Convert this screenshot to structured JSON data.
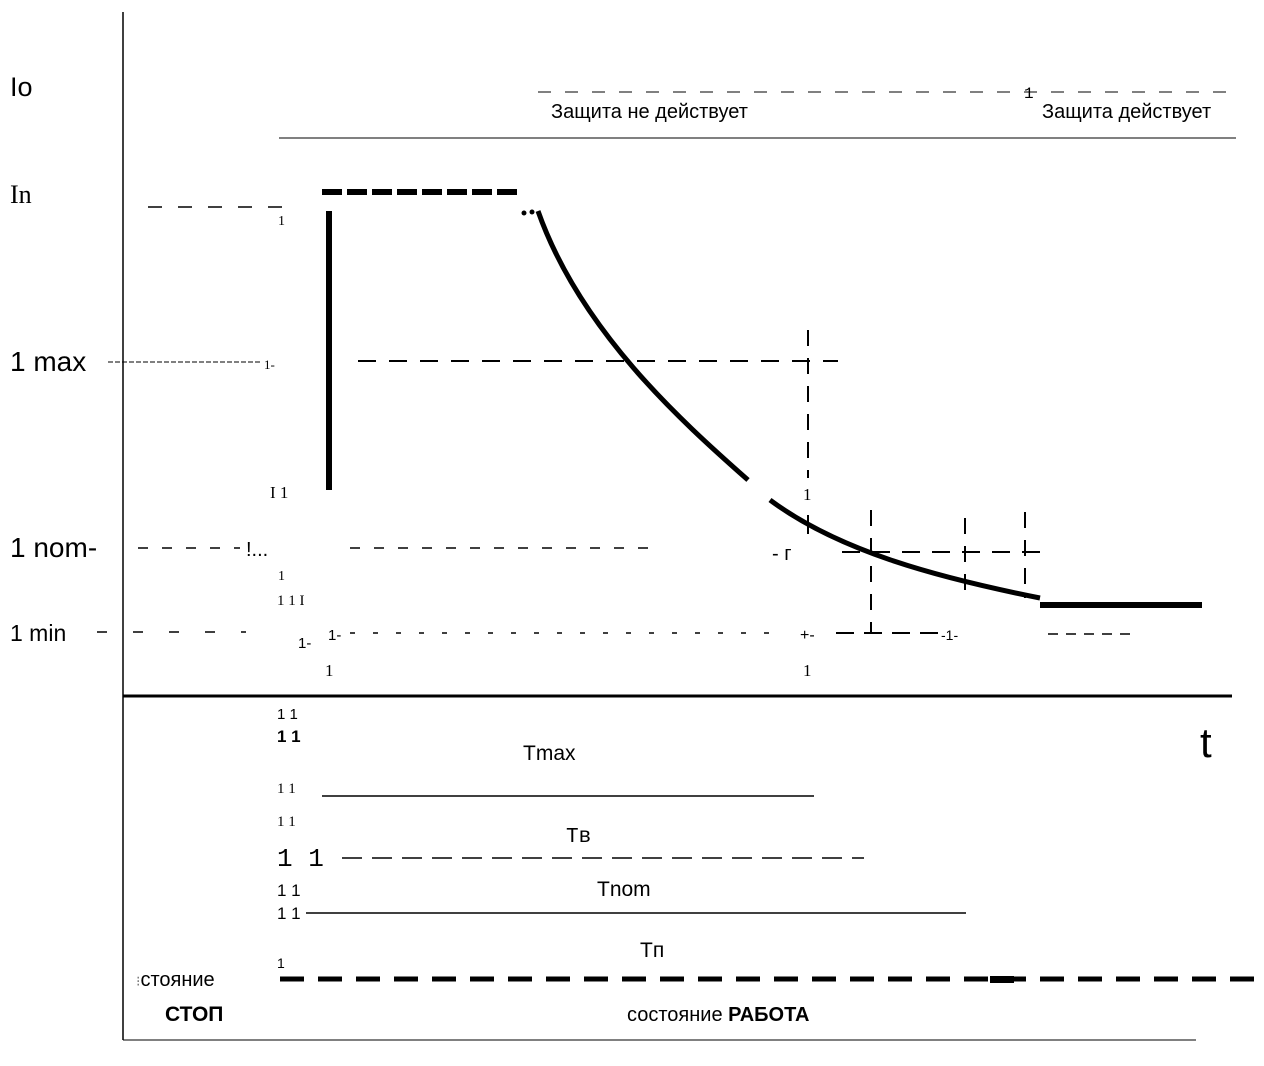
{
  "y_axis": {
    "io": "Io",
    "in": "In",
    "imax": "1 max",
    "inom": "1 nom-",
    "imin": "1 min"
  },
  "x_axis": {
    "label": "t"
  },
  "zones": {
    "no_protection": "Защита  не действует",
    "protection": "Защита действует"
  },
  "intervals": {
    "tmax": "Tmax",
    "tv": "Tв",
    "tnom": "Tnom",
    "tp": "Tп"
  },
  "states": {
    "stop_word": "стояние",
    "stop_value": "СТОП",
    "work_word": "состояние",
    "work_value": "РАБОТА"
  },
  "colors": {
    "ink": "#000000",
    "background": "#ffffff"
  }
}
